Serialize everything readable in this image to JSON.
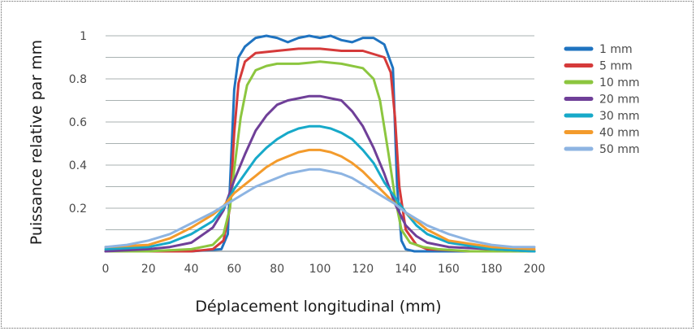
{
  "chart_data": {
    "type": "line",
    "xlabel": "Déplacement longitudinal (mm)",
    "ylabel": "Puissance relative par mm",
    "xlim": [
      0,
      200
    ],
    "ylim": [
      0,
      1
    ],
    "x_ticks": [
      0,
      20,
      40,
      60,
      80,
      100,
      120,
      140,
      160,
      180,
      200
    ],
    "y_ticks": [
      0.2,
      0.4,
      0.6,
      0.8,
      1
    ],
    "y_tick_labels": [
      "0.2",
      "0.4",
      "0.6",
      "0.8",
      "1"
    ],
    "grid": "horizontal",
    "legend_position": "right",
    "series": [
      {
        "name": "1 mm",
        "color": "#1f73c0",
        "x": [
          0,
          20,
          40,
          54,
          57,
          60,
          62,
          65,
          70,
          75,
          80,
          85,
          90,
          95,
          100,
          105,
          110,
          115,
          120,
          125,
          130,
          134,
          136,
          138,
          140,
          144,
          150,
          170,
          200
        ],
        "y": [
          0,
          0,
          0,
          0.01,
          0.08,
          0.75,
          0.9,
          0.95,
          0.99,
          1.0,
          0.99,
          0.97,
          0.99,
          1.0,
          0.99,
          1.0,
          0.98,
          0.97,
          0.99,
          0.99,
          0.96,
          0.85,
          0.3,
          0.05,
          0.01,
          0,
          0,
          0,
          0
        ]
      },
      {
        "name": "5 mm",
        "color": "#d53a3a",
        "x": [
          0,
          20,
          40,
          50,
          55,
          58,
          60,
          62,
          65,
          70,
          80,
          90,
          100,
          110,
          120,
          130,
          133,
          135,
          137,
          140,
          145,
          150,
          170,
          200
        ],
        "y": [
          0,
          0,
          0,
          0.01,
          0.05,
          0.2,
          0.55,
          0.78,
          0.88,
          0.92,
          0.93,
          0.94,
          0.94,
          0.93,
          0.93,
          0.9,
          0.83,
          0.62,
          0.3,
          0.1,
          0.03,
          0.01,
          0,
          0
        ]
      },
      {
        "name": "10 mm",
        "color": "#8cc63f",
        "x": [
          0,
          20,
          40,
          50,
          55,
          58,
          60,
          63,
          66,
          70,
          75,
          80,
          90,
          100,
          110,
          120,
          125,
          128,
          132,
          135,
          138,
          142,
          148,
          155,
          170,
          200
        ],
        "y": [
          0,
          0,
          0.01,
          0.03,
          0.08,
          0.2,
          0.38,
          0.62,
          0.77,
          0.84,
          0.86,
          0.87,
          0.87,
          0.88,
          0.87,
          0.85,
          0.8,
          0.7,
          0.45,
          0.25,
          0.1,
          0.04,
          0.02,
          0.01,
          0,
          0
        ]
      },
      {
        "name": "20 mm",
        "color": "#6f3f98",
        "x": [
          0,
          20,
          30,
          40,
          50,
          55,
          60,
          65,
          70,
          75,
          80,
          85,
          90,
          95,
          100,
          105,
          110,
          115,
          120,
          125,
          130,
          135,
          140,
          145,
          150,
          160,
          180,
          200
        ],
        "y": [
          0,
          0.01,
          0.02,
          0.04,
          0.11,
          0.19,
          0.33,
          0.45,
          0.56,
          0.63,
          0.68,
          0.7,
          0.71,
          0.72,
          0.72,
          0.71,
          0.7,
          0.65,
          0.58,
          0.48,
          0.36,
          0.22,
          0.12,
          0.07,
          0.04,
          0.02,
          0.01,
          0
        ]
      },
      {
        "name": "30 mm",
        "color": "#17a9c9",
        "x": [
          0,
          20,
          30,
          40,
          50,
          55,
          60,
          65,
          70,
          75,
          80,
          85,
          90,
          95,
          100,
          105,
          110,
          115,
          120,
          125,
          130,
          135,
          140,
          145,
          150,
          160,
          180,
          200
        ],
        "y": [
          0.01,
          0.02,
          0.04,
          0.08,
          0.14,
          0.2,
          0.29,
          0.36,
          0.43,
          0.48,
          0.52,
          0.55,
          0.57,
          0.58,
          0.58,
          0.57,
          0.55,
          0.52,
          0.47,
          0.41,
          0.32,
          0.25,
          0.18,
          0.12,
          0.08,
          0.04,
          0.01,
          0
        ]
      },
      {
        "name": "40 mm",
        "color": "#f39b2c",
        "x": [
          0,
          20,
          30,
          40,
          50,
          55,
          60,
          65,
          70,
          75,
          80,
          85,
          90,
          95,
          100,
          105,
          110,
          115,
          120,
          125,
          130,
          135,
          140,
          145,
          150,
          160,
          180,
          200
        ],
        "y": [
          0.02,
          0.03,
          0.06,
          0.11,
          0.17,
          0.21,
          0.27,
          0.31,
          0.35,
          0.39,
          0.42,
          0.44,
          0.46,
          0.47,
          0.47,
          0.46,
          0.44,
          0.41,
          0.37,
          0.32,
          0.27,
          0.22,
          0.18,
          0.14,
          0.1,
          0.05,
          0.02,
          0.01
        ]
      },
      {
        "name": "50 mm",
        "color": "#8db4e2",
        "x": [
          0,
          10,
          20,
          30,
          40,
          50,
          55,
          60,
          65,
          70,
          75,
          80,
          85,
          90,
          95,
          100,
          105,
          110,
          115,
          120,
          125,
          130,
          135,
          140,
          145,
          150,
          160,
          170,
          180,
          190,
          200
        ],
        "y": [
          0.02,
          0.03,
          0.05,
          0.08,
          0.13,
          0.18,
          0.21,
          0.24,
          0.27,
          0.3,
          0.32,
          0.34,
          0.36,
          0.37,
          0.38,
          0.38,
          0.37,
          0.36,
          0.34,
          0.31,
          0.28,
          0.25,
          0.22,
          0.18,
          0.15,
          0.12,
          0.08,
          0.05,
          0.03,
          0.02,
          0.02
        ]
      }
    ]
  }
}
